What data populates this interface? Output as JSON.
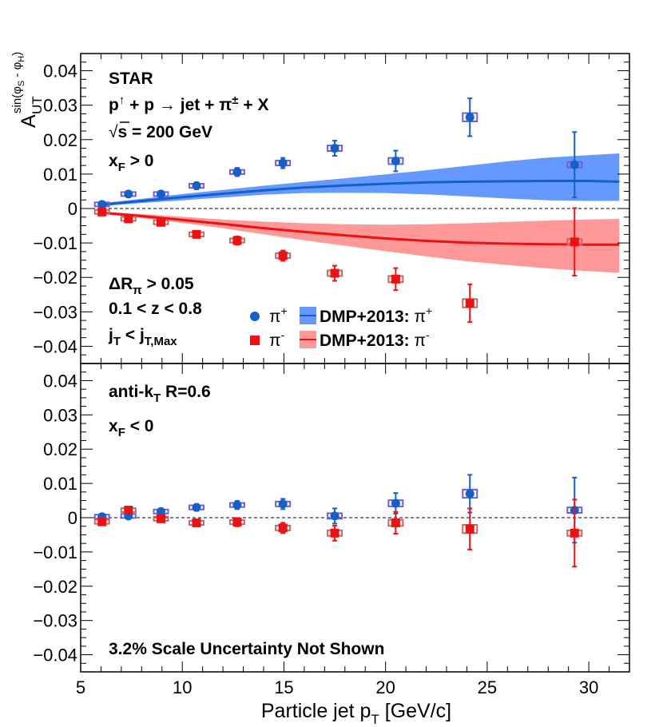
{
  "chart_data": {
    "type": "scatter",
    "ylabel": "A_UT^sin(φ_S - φ_H)",
    "xlabel": "Particle jet p_T [GeV/c]",
    "xlim": [
      5,
      32
    ],
    "ylim": [
      -0.045,
      0.045
    ],
    "x_ticks": [
      5,
      10,
      15,
      20,
      25,
      30
    ],
    "y_ticks": [
      0.04,
      0.03,
      0.02,
      0.01,
      0,
      -0.01,
      -0.02,
      -0.03,
      -0.04
    ],
    "x_tick_labels": [
      "5",
      "10",
      "15",
      "20",
      "25",
      "30"
    ],
    "y_tick_labels": [
      "0.04",
      "0.03",
      "0.02",
      "0.01",
      "0",
      "−0.01",
      "−0.02",
      "−0.03",
      "−0.04"
    ],
    "panels": [
      {
        "id": "top",
        "annotations": [
          "STAR",
          "p↑ + p → jet + π± + X",
          "√s = 200 GeV",
          "xF > 0",
          "ΔRπ > 0.05",
          "0.1 < z < 0.8",
          "jT < jT,Max"
        ],
        "series": [
          {
            "name": "π+",
            "marker": "circle",
            "color": "#1560c8",
            "x": [
              6.05,
              7.35,
              8.95,
              10.7,
              12.7,
              14.95,
              17.5,
              20.5,
              24.15,
              29.3
            ],
            "y": [
              0.0012,
              0.0042,
              0.0042,
              0.0066,
              0.0106,
              0.0132,
              0.0175,
              0.0138,
              0.0265,
              0.0127
            ],
            "stat_err": [
              0.0008,
              0.0009,
              0.0009,
              0.001,
              0.0012,
              0.0015,
              0.0022,
              0.003,
              0.0055,
              0.0095
            ],
            "sys_err": [
              0.0004,
              0.0005,
              0.0005,
              0.0006,
              0.0006,
              0.0007,
              0.0008,
              0.0009,
              0.0012,
              0.0008
            ]
          },
          {
            "name": "π-",
            "marker": "square",
            "color": "#ee1111",
            "x": [
              6.05,
              7.35,
              8.95,
              10.7,
              12.7,
              14.95,
              17.5,
              20.5,
              24.15,
              29.3
            ],
            "y": [
              -0.001,
              -0.003,
              -0.004,
              -0.0075,
              -0.0093,
              -0.0137,
              -0.0188,
              -0.0205,
              -0.0275,
              -0.0097
            ],
            "stat_err": [
              0.0008,
              0.0009,
              0.0009,
              0.001,
              0.0012,
              0.0015,
              0.0022,
              0.0032,
              0.0055,
              0.0098
            ],
            "sys_err": [
              0.0004,
              0.0005,
              0.0005,
              0.0006,
              0.0006,
              0.0007,
              0.0008,
              0.0009,
              0.0012,
              0.0008
            ]
          }
        ],
        "theory": [
          {
            "name": "DMP+2013: π+",
            "line_color": "#1560c8",
            "band_color": "#6699ff",
            "x": [
              6,
              8,
              10,
              12,
              14,
              16,
              18,
              20,
              22,
              24,
              26,
              28,
              30,
              31.5
            ],
            "center": [
              0.0011,
              0.0022,
              0.0033,
              0.0043,
              0.0053,
              0.0061,
              0.0067,
              0.0072,
              0.0076,
              0.0078,
              0.0079,
              0.008,
              0.008,
              0.0078
            ],
            "upper": [
              0.0015,
              0.0028,
              0.0042,
              0.0054,
              0.0066,
              0.0077,
              0.0088,
              0.0099,
              0.0111,
              0.0124,
              0.0137,
              0.0148,
              0.0155,
              0.016
            ],
            "lower": [
              0.0007,
              0.0016,
              0.0024,
              0.0032,
              0.004,
              0.0045,
              0.0046,
              0.0045,
              0.0041,
              0.0035,
              0.0029,
              0.0024,
              0.0022,
              0.0022
            ]
          },
          {
            "name": "DMP+2013: π-",
            "line_color": "#ee1111",
            "band_color": "#ff9999",
            "x": [
              6,
              8,
              10,
              12,
              14,
              16,
              18,
              20,
              22,
              24,
              26,
              28,
              30,
              31.5
            ],
            "center": [
              -0.0012,
              -0.0022,
              -0.0033,
              -0.0045,
              -0.0057,
              -0.0068,
              -0.0078,
              -0.0087,
              -0.0094,
              -0.0099,
              -0.0102,
              -0.0104,
              -0.0105,
              -0.0105
            ],
            "upper": [
              -0.0009,
              -0.0016,
              -0.0024,
              -0.0032,
              -0.0038,
              -0.0043,
              -0.0046,
              -0.0047,
              -0.0046,
              -0.0043,
              -0.0039,
              -0.0035,
              -0.0032,
              -0.003
            ],
            "lower": [
              -0.0015,
              -0.0028,
              -0.0042,
              -0.0057,
              -0.0075,
              -0.0092,
              -0.0108,
              -0.0124,
              -0.0139,
              -0.0153,
              -0.0164,
              -0.0174,
              -0.0182,
              -0.0187
            ]
          }
        ]
      },
      {
        "id": "bottom",
        "annotations": [
          "anti-kT R=0.6",
          "xF < 0",
          "3.2% Scale Uncertainty Not Shown"
        ],
        "series": [
          {
            "name": "π+",
            "marker": "circle",
            "color": "#1560c8",
            "x": [
              6.05,
              7.35,
              8.95,
              10.7,
              12.7,
              14.95,
              17.5,
              20.5,
              24.15,
              29.3
            ],
            "y": [
              0.0003,
              0.0005,
              0.0018,
              0.003,
              0.0037,
              0.004,
              0.0005,
              0.0042,
              0.007,
              0.0022
            ],
            "stat_err": [
              0.0008,
              0.0009,
              0.0009,
              0.001,
              0.0012,
              0.0015,
              0.0022,
              0.003,
              0.0055,
              0.0095
            ],
            "sys_err": [
              0.0004,
              0.0005,
              0.0005,
              0.0006,
              0.0006,
              0.0007,
              0.0008,
              0.0009,
              0.0012,
              0.0008
            ]
          },
          {
            "name": "π-",
            "marker": "square",
            "color": "#ee1111",
            "x": [
              6.05,
              7.35,
              8.95,
              10.7,
              12.7,
              14.95,
              17.5,
              20.5,
              24.15,
              29.3
            ],
            "y": [
              -0.0012,
              0.0022,
              -0.0003,
              -0.0015,
              -0.0013,
              -0.003,
              -0.0045,
              -0.0015,
              -0.0033,
              -0.0045
            ],
            "stat_err": [
              0.0008,
              0.0009,
              0.0009,
              0.001,
              0.0012,
              0.0015,
              0.0022,
              0.0032,
              0.006,
              0.0098
            ],
            "sys_err": [
              0.0004,
              0.0005,
              0.0005,
              0.0006,
              0.0006,
              0.0007,
              0.0008,
              0.0009,
              0.0012,
              0.0008
            ]
          }
        ],
        "theory": []
      }
    ],
    "legend": [
      {
        "label": "π+",
        "type": "marker-circle",
        "color": "#1560c8"
      },
      {
        "label": "π-",
        "type": "marker-square",
        "color": "#ee1111"
      },
      {
        "label": "DMP+2013: π+",
        "type": "band",
        "color": "#6699ff",
        "line": "#1560c8"
      },
      {
        "label": "DMP+2013: π-",
        "type": "band",
        "color": "#ff9999",
        "line": "#ee1111"
      }
    ]
  }
}
